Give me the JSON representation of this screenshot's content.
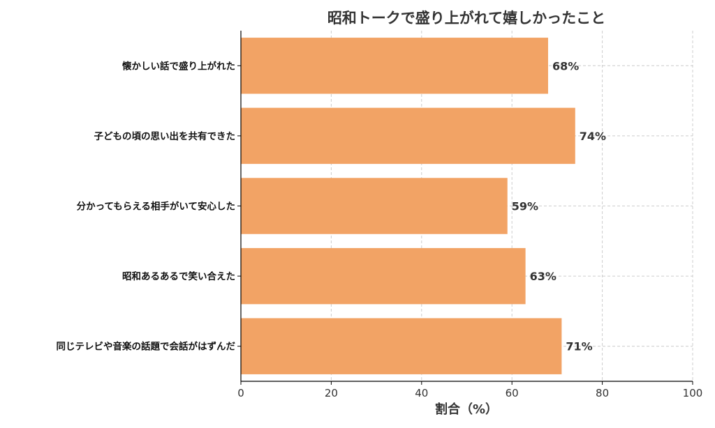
{
  "chart_data": {
    "type": "bar",
    "orientation": "horizontal",
    "title": "昭和トークで盛り上がれて嬉しかったこと",
    "xlabel": "割合（%）",
    "ylabel": "",
    "xlim": [
      0,
      100
    ],
    "x_ticks": [
      0,
      20,
      40,
      60,
      80,
      100
    ],
    "grid": true,
    "bar_color": "#F2A365",
    "categories": [
      "懐かしい話で盛り上がれた",
      "子どもの頃の思い出を共有できた",
      "分かってもらえる相手がいて安心した",
      "昭和あるあるで笑い合えた",
      "同じテレビや音楽の話題で会話がはずんだ"
    ],
    "values": [
      68,
      74,
      59,
      63,
      71
    ],
    "value_labels": [
      "68%",
      "74%",
      "59%",
      "63%",
      "71%"
    ]
  }
}
